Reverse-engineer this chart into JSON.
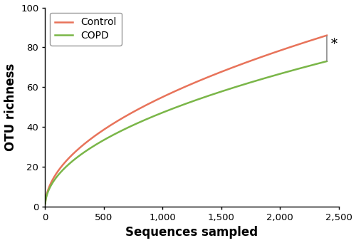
{
  "title": "",
  "xlabel": "Sequences sampled",
  "ylabel": "OTU richness",
  "xlim": [
    0,
    2500
  ],
  "ylim": [
    0,
    100
  ],
  "xticks": [
    0,
    500,
    1000,
    1500,
    2000,
    2500
  ],
  "xtick_labels": [
    "0",
    "500",
    "1,000",
    "1,500",
    "2,000",
    "2,500"
  ],
  "yticks": [
    0,
    20,
    40,
    60,
    80,
    100
  ],
  "control_color": "#E8735A",
  "copd_color": "#7AB648",
  "significance_color": "#888888",
  "control_label": "Control",
  "copd_label": "COPD",
  "max_x": 2400,
  "control_end_y": 86,
  "copd_end_y": 73,
  "control_a": 3.95,
  "control_b": 0.42,
  "copd_a": 3.0,
  "copd_b": 0.435,
  "background_color": "#ffffff",
  "xlabel_fontsize": 12,
  "ylabel_fontsize": 12,
  "legend_fontsize": 10,
  "tick_fontsize": 9.5
}
